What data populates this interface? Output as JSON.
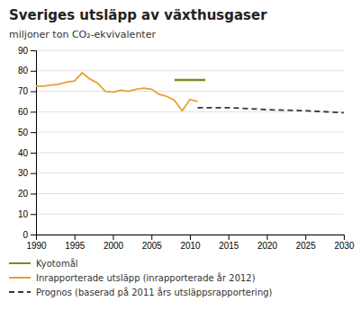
{
  "chart_data": {
    "type": "line",
    "title": "Sveriges utsläpp av växthusgaser",
    "y_label": "miljoner ton CO₂-ekvivalenter",
    "xlim": [
      1990,
      2030
    ],
    "ylim": [
      0,
      90
    ],
    "xticks": [
      1990,
      1995,
      2000,
      2005,
      2010,
      2015,
      2020,
      2025,
      2030
    ],
    "yticks": [
      0,
      10,
      20,
      30,
      40,
      50,
      60,
      70,
      80,
      90
    ],
    "grid": true,
    "series": [
      {
        "name": "Kyotomål",
        "color": "#7a8c1e",
        "line_style": "solid",
        "x": [
          2008,
          2012
        ],
        "values": [
          75.5,
          75.5
        ]
      },
      {
        "name": "Inrapporterade utsläpp (inrapporterade år 2012)",
        "color": "#e8a030",
        "line_style": "solid",
        "x": [
          1990,
          1991,
          1992,
          1993,
          1994,
          1995,
          1996,
          1997,
          1998,
          1999,
          2000,
          2001,
          2002,
          2003,
          2004,
          2005,
          2006,
          2007,
          2008,
          2009,
          2010,
          2011
        ],
        "values": [
          72.5,
          72.5,
          73.0,
          73.5,
          74.5,
          75.0,
          79.0,
          76.0,
          74.0,
          70.0,
          69.5,
          70.5,
          70.0,
          71.0,
          71.5,
          71.0,
          68.5,
          67.5,
          65.5,
          60.5,
          66.0,
          65.0
        ]
      },
      {
        "name": "Prognos (baserad på 2011 års utsläppsrapportering)",
        "color": "#333344",
        "line_style": "dashed",
        "x": [
          2011,
          2015,
          2020,
          2025,
          2030
        ],
        "values": [
          62.0,
          62.0,
          61.0,
          60.5,
          59.5
        ]
      }
    ]
  }
}
